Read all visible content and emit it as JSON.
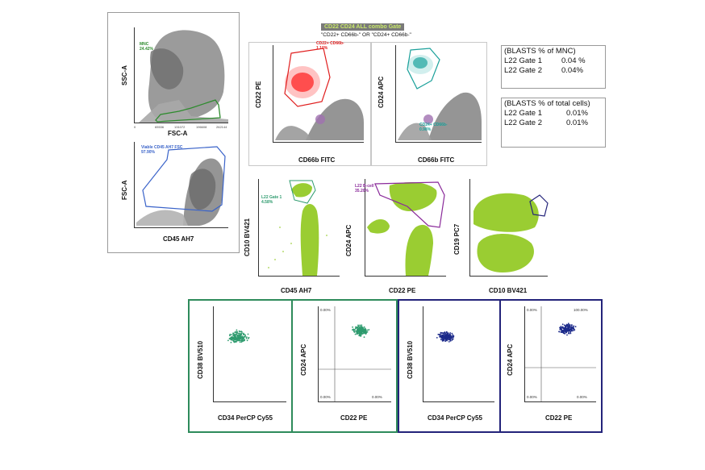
{
  "combo_gate": {
    "title": "CD22 CD24 ALL combo Gate",
    "condition": "\"CD22+ CD66b-\" OR \"CD24+ CD66b-\""
  },
  "colors": {
    "green_gate": "#2e8b2e",
    "blue_gate": "#3a63c9",
    "red_gate": "#e01e1e",
    "teal_gate": "#1aa09a",
    "purple_gate": "#8a2a9a",
    "lime_events": "#9acd32",
    "gray_events": "#8a8a8a",
    "green_frame": "#2e8b5b",
    "navy_frame": "#23237a",
    "teal_dots": "#2e9b6e",
    "navy_dots": "#1c2a8a"
  },
  "panel1": {
    "x_label": "FSC-A",
    "y_label": "SSC-A",
    "gate_name": "MNC",
    "gate_value": "24.42%",
    "x_ticks": [
      "0",
      "65536",
      "131072",
      "196608",
      "262144"
    ]
  },
  "panel2": {
    "x_label": "CD45 AH7",
    "y_label": "FSC-A",
    "gate_name": "Viable CD45 AH7 FSC",
    "gate_value": "97.90%"
  },
  "panel3": {
    "x_label": "CD66b FITC",
    "y_label": "CD22 PE",
    "gate_name": "CD22+ CD66b-",
    "gate_value": "1.10%"
  },
  "panel4": {
    "x_label": "CD66b FITC",
    "y_label": "CD24 APC",
    "gate_name": "CD24+ CD66b-",
    "gate_value": "0.98%"
  },
  "panel5": {
    "x_label": "CD45 AH7",
    "y_label": "CD10 BV421",
    "gate_name": "L22 Gate 1",
    "gate_value": "4.58%"
  },
  "panel6": {
    "x_label": "CD22 PE",
    "y_label": "CD24 APC",
    "gate_name": "L22 B-cell",
    "gate_value": "35.20%"
  },
  "panel7": {
    "x_label": "CD10 BV421",
    "y_label": "CD19 PC7"
  },
  "panel8": {
    "x_label": "CD34 PerCP Cy55",
    "y_label": "CD38 BV510"
  },
  "panel9": {
    "x_label": "CD22 PE",
    "y_label": "CD24 APC",
    "q_ul": "0.00%",
    "q_ur": "",
    "q_ll": "0.00%",
    "q_lr": "0.00%"
  },
  "panel10": {
    "x_label": "CD34 PerCP Cy55",
    "y_label": "CD38 BV510"
  },
  "panel11": {
    "x_label": "CD22 PE",
    "y_label": "CD24 APC",
    "q_ul": "0.00%",
    "q_ur": "100.00%",
    "q_ll": "0.00%",
    "q_lr": "0.00%"
  },
  "stats_mnc": {
    "title": "(BLASTS % of MNC)",
    "rows": [
      {
        "label": "L22 Gate 1",
        "value": "0.04 %"
      },
      {
        "label": "L22 Gate 2",
        "value": "0.04%"
      }
    ]
  },
  "stats_total": {
    "title": "(BLASTS % of total cells)",
    "rows": [
      {
        "label": "L22 Gate 1",
        "value": "0.01%"
      },
      {
        "label": "L22 Gate 2",
        "value": "0.01%"
      }
    ]
  }
}
